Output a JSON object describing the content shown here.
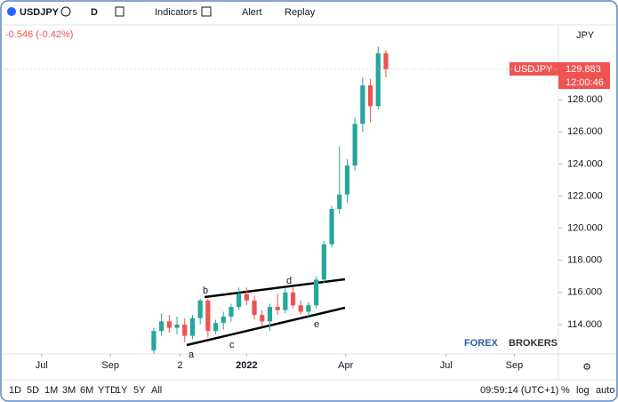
{
  "toolbar": {
    "symbol": "USDJPY",
    "interval": "D",
    "indicators": "Indicators",
    "alert": "Alert",
    "replay": "Replay"
  },
  "change": "-0.546 (-0.42%)",
  "axis_corner": "JPY",
  "price_tag": {
    "symbol": "USDJPY",
    "price": "129.883",
    "countdown": "12:00:46"
  },
  "watermark": [
    "FOREX",
    "BROKERS"
  ],
  "bottom_bar": {
    "ranges": [
      "1D",
      "5D",
      "1M",
      "3M",
      "6M",
      "YTD",
      "1Y",
      "5Y",
      "All"
    ],
    "clock": "09:59:14 (UTC+1)",
    "percent": "%",
    "log": "log",
    "auto": "auto"
  },
  "annotations": [
    "a",
    "b",
    "c",
    "d",
    "e"
  ],
  "chart_data": {
    "type": "candlestick",
    "up_color": "#26a69a",
    "down_color": "#ef5350",
    "grid": false,
    "categories": [
      null,
      null,
      null,
      null,
      null,
      null,
      null,
      null,
      null,
      null,
      null,
      null,
      null,
      null,
      null,
      null,
      null,
      null,
      null,
      null,
      null,
      null,
      null,
      null,
      null,
      null,
      null,
      null,
      null,
      null,
      null
    ],
    "open": [
      112.4,
      113.6,
      114.2,
      113.8,
      114.0,
      113.3,
      114.4,
      115.5,
      113.6,
      114.1,
      114.5,
      115.1,
      115.9,
      115.5,
      114.6,
      114.2,
      115.1,
      114.9,
      116.0,
      115.2,
      114.8,
      115.2,
      116.8,
      119.0,
      121.2,
      122.1,
      123.9,
      126.5,
      128.9,
      127.6,
      130.9
    ],
    "high": [
      113.8,
      114.7,
      114.6,
      114.5,
      114.4,
      114.6,
      115.6,
      115.6,
      114.3,
      114.8,
      115.3,
      116.3,
      116.3,
      115.8,
      114.9,
      115.3,
      115.9,
      116.3,
      116.3,
      115.5,
      115.4,
      117.0,
      119.2,
      121.4,
      125.1,
      124.3,
      126.9,
      129.4,
      129.3,
      131.3,
      131.1
    ],
    "low": [
      112.2,
      113.3,
      113.5,
      113.4,
      112.9,
      113.1,
      114.0,
      113.2,
      113.4,
      113.7,
      114.2,
      114.9,
      115.2,
      114.3,
      113.9,
      113.6,
      114.6,
      114.7,
      115.0,
      114.6,
      114.4,
      115.0,
      116.6,
      118.8,
      120.9,
      121.6,
      123.6,
      126.0,
      126.6,
      127.4,
      129.4
    ],
    "close": [
      113.6,
      114.2,
      113.8,
      114.0,
      113.3,
      114.4,
      115.5,
      113.6,
      114.1,
      114.5,
      115.1,
      115.9,
      115.5,
      114.6,
      114.2,
      115.1,
      114.9,
      116.0,
      115.2,
      114.8,
      115.2,
      116.8,
      119.0,
      121.2,
      122.1,
      123.9,
      126.5,
      128.9,
      127.6,
      130.9,
      129.9
    ],
    "xlim": [
      -19.3,
      52.3
    ],
    "xticks": [
      {
        "value": -14.5,
        "label": "Jul"
      },
      {
        "value": -5.6,
        "label": "Sep"
      },
      {
        "value": 3.4,
        "label": "2"
      },
      {
        "value": 12,
        "label": "2022"
      },
      {
        "value": 24.8,
        "label": "Apr"
      },
      {
        "value": 37.8,
        "label": "Jul"
      },
      {
        "value": 46.6,
        "label": "Sep"
      }
    ],
    "ylim": [
      112.17,
      132.66
    ],
    "yticks": [
      {
        "value": 114,
        "label": "114.000"
      },
      {
        "value": 116,
        "label": "116.000"
      },
      {
        "value": 118,
        "label": "118.000"
      },
      {
        "value": 120,
        "label": "120.000"
      },
      {
        "value": 122,
        "label": "122.000"
      },
      {
        "value": 124,
        "label": "124.000"
      },
      {
        "value": 126,
        "label": "126.000"
      },
      {
        "value": 128,
        "label": "128.000"
      }
    ]
  }
}
